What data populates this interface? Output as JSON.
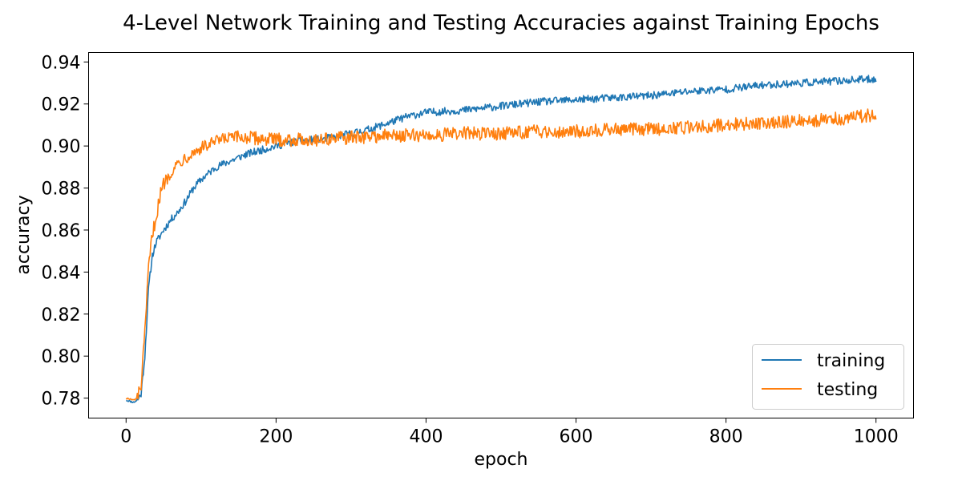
{
  "chart_data": {
    "type": "line",
    "title": "4-Level Network Training and Testing Accuracies against Training Epochs",
    "xlabel": "epoch",
    "ylabel": "accuracy",
    "xlim": [
      -50,
      1050
    ],
    "ylim": [
      0.7705,
      0.9445
    ],
    "xticks": [
      0,
      200,
      400,
      600,
      800,
      1000
    ],
    "xtick_labels": [
      "0",
      "200",
      "400",
      "600",
      "800",
      "1000"
    ],
    "yticks": [
      0.78,
      0.8,
      0.82,
      0.84,
      0.86,
      0.88,
      0.9,
      0.92,
      0.94
    ],
    "ytick_labels": [
      "0.78",
      "0.80",
      "0.82",
      "0.84",
      "0.86",
      "0.88",
      "0.90",
      "0.92",
      "0.94"
    ],
    "grid": false,
    "legend_position": "lower-right",
    "series": [
      {
        "name": "training",
        "color": "#1f77b4",
        "points": [
          [
            0,
            0.779
          ],
          [
            10,
            0.778
          ],
          [
            15,
            0.779
          ],
          [
            20,
            0.782
          ],
          [
            25,
            0.8
          ],
          [
            30,
            0.832
          ],
          [
            35,
            0.848
          ],
          [
            40,
            0.854
          ],
          [
            50,
            0.86
          ],
          [
            60,
            0.865
          ],
          [
            70,
            0.869
          ],
          [
            80,
            0.874
          ],
          [
            90,
            0.88
          ],
          [
            100,
            0.884
          ],
          [
            110,
            0.887
          ],
          [
            120,
            0.89
          ],
          [
            140,
            0.893
          ],
          [
            160,
            0.896
          ],
          [
            180,
            0.898
          ],
          [
            200,
            0.9
          ],
          [
            225,
            0.902
          ],
          [
            250,
            0.903
          ],
          [
            275,
            0.904
          ],
          [
            300,
            0.906
          ],
          [
            325,
            0.908
          ],
          [
            350,
            0.911
          ],
          [
            375,
            0.914
          ],
          [
            400,
            0.916
          ],
          [
            450,
            0.917
          ],
          [
            500,
            0.919
          ],
          [
            550,
            0.921
          ],
          [
            600,
            0.922
          ],
          [
            650,
            0.923
          ],
          [
            700,
            0.924
          ],
          [
            750,
            0.926
          ],
          [
            800,
            0.927
          ],
          [
            850,
            0.929
          ],
          [
            900,
            0.93
          ],
          [
            950,
            0.931
          ],
          [
            1000,
            0.932
          ]
        ]
      },
      {
        "name": "testing",
        "color": "#ff7f0e",
        "points": [
          [
            0,
            0.78
          ],
          [
            10,
            0.779
          ],
          [
            15,
            0.78
          ],
          [
            20,
            0.786
          ],
          [
            25,
            0.81
          ],
          [
            30,
            0.842
          ],
          [
            35,
            0.858
          ],
          [
            40,
            0.866
          ],
          [
            45,
            0.876
          ],
          [
            50,
            0.882
          ],
          [
            60,
            0.888
          ],
          [
            70,
            0.892
          ],
          [
            80,
            0.895
          ],
          [
            90,
            0.897
          ],
          [
            100,
            0.899
          ],
          [
            120,
            0.902
          ],
          [
            140,
            0.904
          ],
          [
            160,
            0.904
          ],
          [
            200,
            0.903
          ],
          [
            250,
            0.903
          ],
          [
            300,
            0.904
          ],
          [
            350,
            0.905
          ],
          [
            400,
            0.905
          ],
          [
            450,
            0.906
          ],
          [
            500,
            0.906
          ],
          [
            550,
            0.907
          ],
          [
            600,
            0.907
          ],
          [
            650,
            0.908
          ],
          [
            700,
            0.908
          ],
          [
            750,
            0.909
          ],
          [
            800,
            0.91
          ],
          [
            850,
            0.911
          ],
          [
            900,
            0.912
          ],
          [
            950,
            0.913
          ],
          [
            1000,
            0.915
          ]
        ]
      }
    ]
  }
}
